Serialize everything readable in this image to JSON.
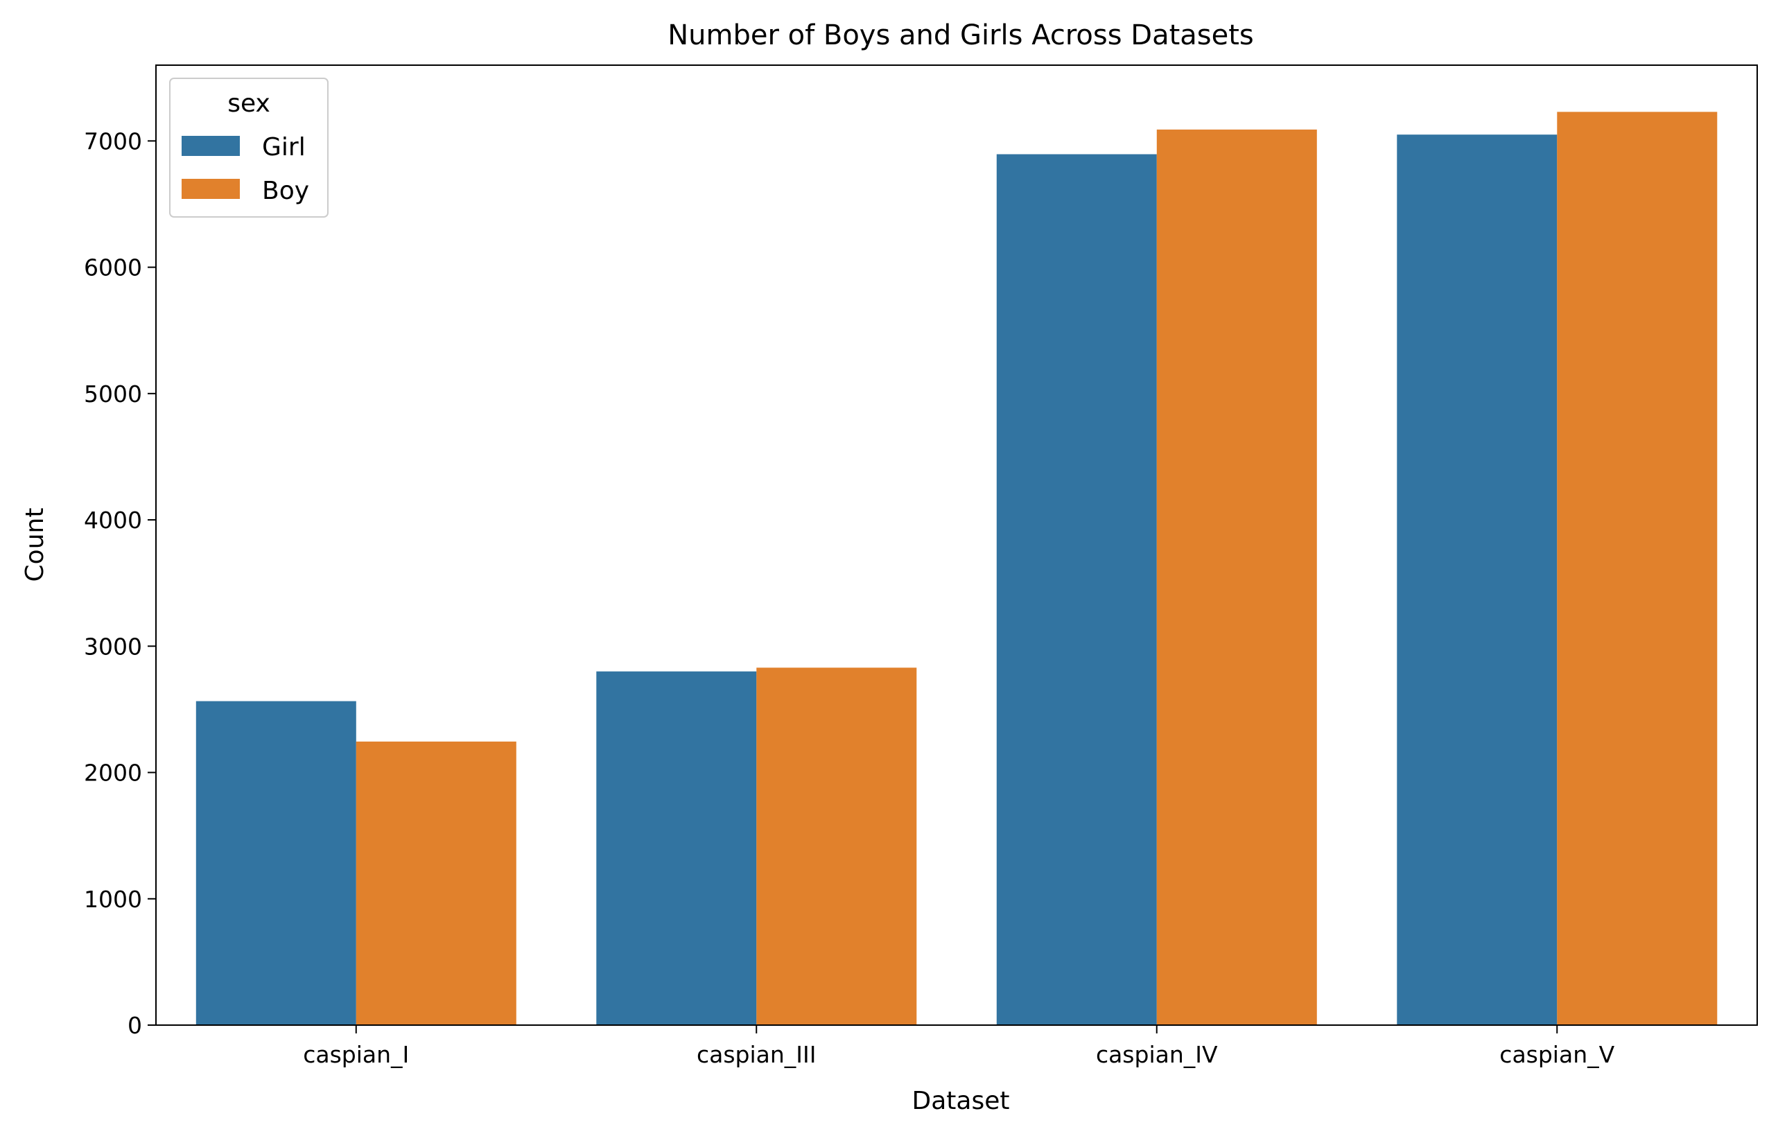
{
  "chart_data": {
    "type": "bar",
    "title": "Number of Boys and Girls Across Datasets",
    "xlabel": "Dataset",
    "ylabel": "Count",
    "categories": [
      "caspian_I",
      "caspian_III",
      "caspian_IV",
      "caspian_V"
    ],
    "series": [
      {
        "name": "Girl",
        "color": "#3274a1",
        "values": [
          2565,
          2800,
          6895,
          7050
        ]
      },
      {
        "name": "Boy",
        "color": "#e1812c",
        "values": [
          2245,
          2830,
          7090,
          7230
        ]
      }
    ],
    "ylim": [
      0,
      7600
    ],
    "yticks": [
      "0",
      "1000",
      "2000",
      "3000",
      "4000",
      "5000",
      "6000",
      "7000"
    ],
    "legend": {
      "title": "sex",
      "placement": "top-left"
    },
    "grid": false
  }
}
